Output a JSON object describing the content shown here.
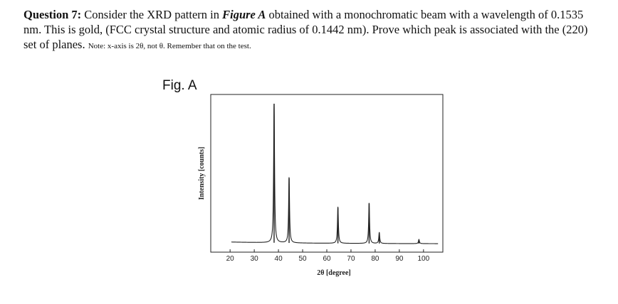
{
  "question": {
    "label": "Question 7:",
    "text_before_ref": " Consider the XRD pattern in ",
    "figure_ref": "Figure A",
    "text_after_ref": " obtained with a monochromatic beam with a wavelength of 0.1535 nm. This is gold, (FCC crystal structure and atomic radius of 0.1442 nm). Prove which peak is associated with the (220) set of planes.",
    "note": "Note: x-axis is 2θ, not θ. Remember that on the test."
  },
  "figure": {
    "label": "Fig. A"
  },
  "chart_data": {
    "type": "line",
    "title": "",
    "xlabel": "2θ [degree]",
    "ylabel": "Intensity [counts]",
    "xlim": [
      12,
      108
    ],
    "ylim": [
      0,
      100
    ],
    "xticks": [
      20,
      30,
      40,
      50,
      60,
      70,
      80,
      90,
      100
    ],
    "xtick_labels": [
      "20",
      "30",
      "40",
      "50",
      "60",
      "70",
      "80",
      "90",
      "100"
    ],
    "yticks_shown": false,
    "grid": false,
    "peaks": [
      {
        "x": 38.2,
        "y": 100
      },
      {
        "x": 44.4,
        "y": 47
      },
      {
        "x": 64.6,
        "y": 26
      },
      {
        "x": 77.5,
        "y": 29
      },
      {
        "x": 81.7,
        "y": 8
      },
      {
        "x": 98.1,
        "y": 3
      }
    ],
    "series_color": "#222222"
  }
}
